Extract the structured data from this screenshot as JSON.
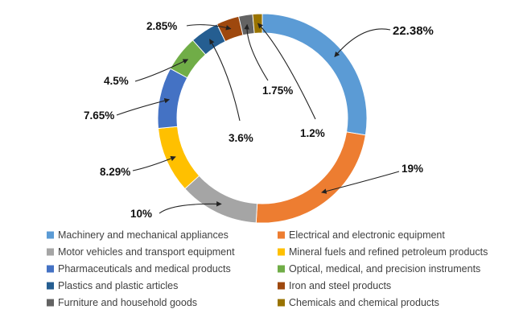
{
  "chart_data": {
    "type": "pie",
    "variant": "donut",
    "title": "",
    "legend_position": "bottom",
    "slices": [
      {
        "name": "Machinery and mechanical appliances",
        "value": 22.38,
        "label": "22.38%",
        "color": "#5B9BD5"
      },
      {
        "name": "Electrical and electronic equipment",
        "value": 19,
        "label": "19%",
        "color": "#ED7D31"
      },
      {
        "name": "Motor vehicles and transport equipment",
        "value": 10,
        "label": "10%",
        "color": "#A5A5A5"
      },
      {
        "name": "Mineral fuels and refined petroleum products",
        "value": 8.29,
        "label": "8.29%",
        "color": "#FFC000"
      },
      {
        "name": "Pharmaceuticals and medical products",
        "value": 7.65,
        "label": "7.65%",
        "color": "#4472C4"
      },
      {
        "name": "Optical, medical, and precision instruments",
        "value": 4.5,
        "label": "4.5%",
        "color": "#70AD47"
      },
      {
        "name": "Plastics and plastic articles",
        "value": 3.6,
        "label": "3.6%",
        "color": "#255E91"
      },
      {
        "name": "Iron and steel products",
        "value": 2.85,
        "label": "2.85%",
        "color": "#9E480E"
      },
      {
        "name": "Furniture and household goods",
        "value": 1.75,
        "label": "1.75%",
        "color": "#636363"
      },
      {
        "name": "Chemicals and chemical products",
        "value": 1.2,
        "label": "1.2%",
        "color": "#997300"
      }
    ]
  }
}
